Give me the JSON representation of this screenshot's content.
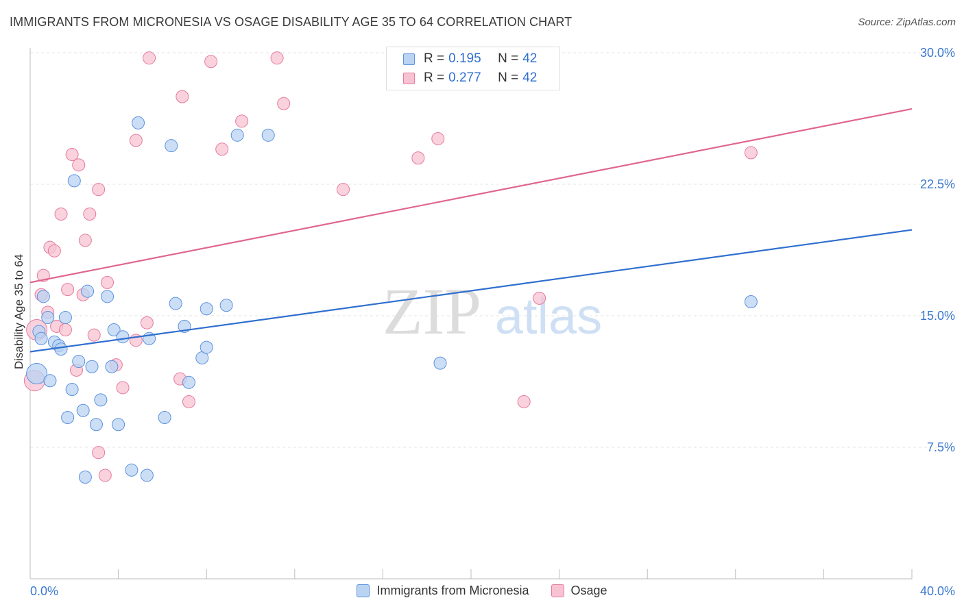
{
  "chart_data": {
    "type": "scatter",
    "title": "IMMIGRANTS FROM MICRONESIA VS OSAGE DISABILITY AGE 35 TO 64 CORRELATION CHART",
    "source": "Source: ZipAtlas.com",
    "watermark": {
      "part1": "ZIP",
      "part2": "atlas"
    },
    "ylabel": "Disability Age 35 to 64",
    "xlim": [
      0,
      40
    ],
    "ylim": [
      0,
      31
    ],
    "x_tick_labels": [
      "0.0%",
      "40.0%"
    ],
    "y_ticks": [
      7.5,
      15.0,
      22.5,
      30.0
    ],
    "y_tick_labels": [
      "7.5%",
      "15.0%",
      "22.5%",
      "30.0%"
    ],
    "grid": true,
    "legend_position": "top-center",
    "series": [
      {
        "name": "Immigrants from Micronesia",
        "color": "#5b92de",
        "fill": "#b9d3f2",
        "R": "0.195",
        "N": "42",
        "trend": {
          "x0": 0,
          "y0": 12.95,
          "x1": 40,
          "y1": 19.9
        },
        "points": [
          [
            0.3,
            11.7
          ],
          [
            0.4,
            14.1
          ],
          [
            0.5,
            13.7
          ],
          [
            0.6,
            16.1
          ],
          [
            0.8,
            14.9
          ],
          [
            0.9,
            11.3
          ],
          [
            1.1,
            13.5
          ],
          [
            1.3,
            13.3
          ],
          [
            1.4,
            13.1
          ],
          [
            1.6,
            14.9
          ],
          [
            1.7,
            9.2
          ],
          [
            1.9,
            10.8
          ],
          [
            2.0,
            22.7
          ],
          [
            2.2,
            12.4
          ],
          [
            2.4,
            9.6
          ],
          [
            2.5,
            5.8
          ],
          [
            2.6,
            16.4
          ],
          [
            2.8,
            12.1
          ],
          [
            3.0,
            8.8
          ],
          [
            3.2,
            10.2
          ],
          [
            3.5,
            16.1
          ],
          [
            3.7,
            12.1
          ],
          [
            3.8,
            14.2
          ],
          [
            4.0,
            8.8
          ],
          [
            4.2,
            13.8
          ],
          [
            4.6,
            6.2
          ],
          [
            4.9,
            26.0
          ],
          [
            5.3,
            5.9
          ],
          [
            5.4,
            13.7
          ],
          [
            6.1,
            9.2
          ],
          [
            6.4,
            24.7
          ],
          [
            6.6,
            15.7
          ],
          [
            7.0,
            14.4
          ],
          [
            7.2,
            11.2
          ],
          [
            7.8,
            12.6
          ],
          [
            8.0,
            15.4
          ],
          [
            8.0,
            13.2
          ],
          [
            8.9,
            15.6
          ],
          [
            9.4,
            25.3
          ],
          [
            10.8,
            25.3
          ],
          [
            18.6,
            12.3
          ],
          [
            32.7,
            15.8
          ]
        ]
      },
      {
        "name": "Osage",
        "color": "#e77a9c",
        "fill": "#f7c3d3",
        "R": "0.277",
        "N": "42",
        "trend": {
          "x0": 0,
          "y0": 16.9,
          "x1": 40,
          "y1": 26.8
        },
        "points": [
          [
            0.2,
            11.3
          ],
          [
            0.3,
            14.2
          ],
          [
            0.5,
            16.2
          ],
          [
            0.6,
            17.3
          ],
          [
            0.8,
            15.2
          ],
          [
            0.9,
            18.9
          ],
          [
            1.1,
            18.7
          ],
          [
            1.2,
            14.4
          ],
          [
            1.4,
            20.8
          ],
          [
            1.6,
            14.2
          ],
          [
            1.7,
            16.5
          ],
          [
            1.9,
            24.2
          ],
          [
            2.1,
            11.9
          ],
          [
            2.2,
            23.6
          ],
          [
            2.4,
            16.2
          ],
          [
            2.5,
            19.3
          ],
          [
            2.7,
            20.8
          ],
          [
            2.9,
            13.9
          ],
          [
            3.1,
            7.2
          ],
          [
            3.1,
            22.2
          ],
          [
            3.4,
            5.9
          ],
          [
            3.5,
            16.9
          ],
          [
            3.9,
            12.2
          ],
          [
            4.2,
            10.9
          ],
          [
            4.8,
            13.6
          ],
          [
            4.8,
            25.0
          ],
          [
            5.3,
            14.6
          ],
          [
            5.4,
            29.7
          ],
          [
            6.8,
            11.4
          ],
          [
            6.9,
            27.5
          ],
          [
            7.2,
            10.1
          ],
          [
            8.2,
            29.5
          ],
          [
            8.7,
            24.5
          ],
          [
            9.6,
            26.1
          ],
          [
            11.2,
            29.7
          ],
          [
            11.5,
            27.1
          ],
          [
            14.2,
            22.2
          ],
          [
            17.6,
            24.0
          ],
          [
            18.5,
            25.1
          ],
          [
            22.4,
            10.1
          ],
          [
            23.1,
            16.0
          ],
          [
            32.7,
            24.3
          ]
        ]
      }
    ]
  }
}
